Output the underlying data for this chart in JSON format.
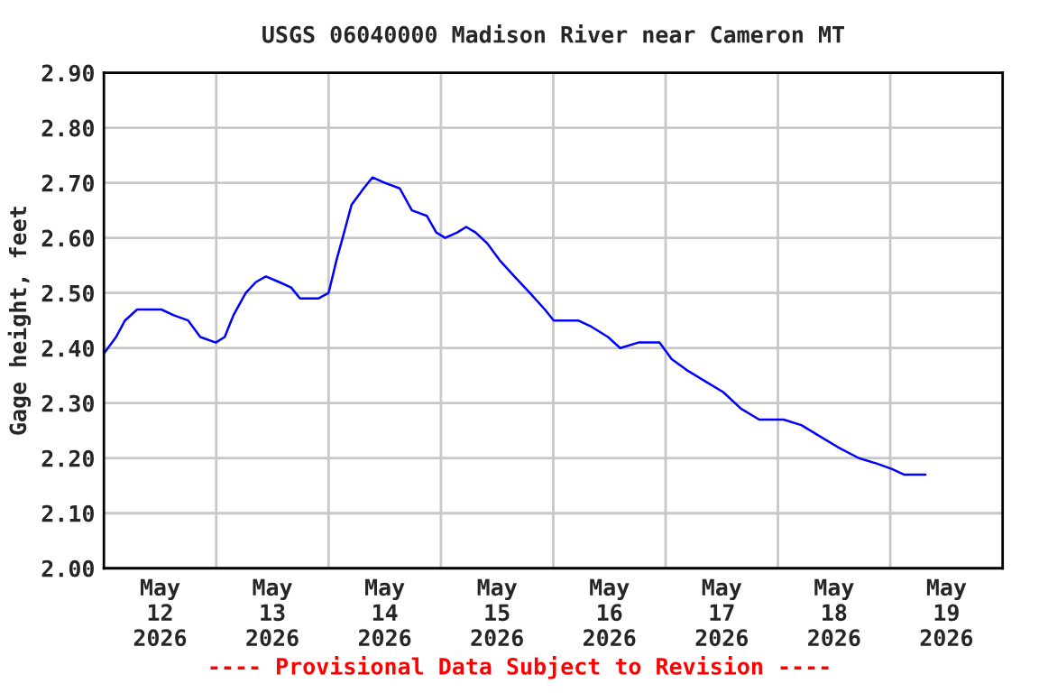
{
  "chart_data": {
    "type": "line",
    "title": "USGS 06040000 Madison River near Cameron MT",
    "ylabel": "Gage height, feet",
    "annotations": [
      "---- Provisional Data Subject to Revision ----"
    ],
    "x": [
      "2026-05-12T00:00",
      "2026-05-12T02:36",
      "2026-05-12T04:30",
      "2026-05-12T07:06",
      "2026-05-12T12:18",
      "2026-05-12T14:48",
      "2026-05-12T18:00",
      "2026-05-12T20:36",
      "2026-05-12T23:54",
      "2026-05-13T01:48",
      "2026-05-13T03:42",
      "2026-05-13T06:18",
      "2026-05-13T08:30",
      "2026-05-13T10:36",
      "2026-05-13T13:24",
      "2026-05-13T16:00",
      "2026-05-13T17:54",
      "2026-05-13T19:54",
      "2026-05-13T21:48",
      "2026-05-14T00:00",
      "2026-05-14T01:42",
      "2026-05-14T03:00",
      "2026-05-14T04:54",
      "2026-05-14T07:30",
      "2026-05-14T09:24",
      "2026-05-14T12:00",
      "2026-05-14T15:12",
      "2026-05-14T17:48",
      "2026-05-14T21:00",
      "2026-05-14T23:00",
      "2026-05-15T00:54",
      "2026-05-15T03:30",
      "2026-05-15T05:24",
      "2026-05-15T07:24",
      "2026-05-15T09:54",
      "2026-05-15T12:30",
      "2026-05-15T15:42",
      "2026-05-15T19:00",
      "2026-05-15T22:12",
      "2026-05-16T00:06",
      "2026-05-16T02:42",
      "2026-05-16T05:18",
      "2026-05-16T07:54",
      "2026-05-16T11:42",
      "2026-05-16T14:18",
      "2026-05-16T18:12",
      "2026-05-16T22:42",
      "2026-05-17T01:18",
      "2026-05-17T04:30",
      "2026-05-17T08:24",
      "2026-05-17T12:18",
      "2026-05-17T16:06",
      "2026-05-17T20:00",
      "2026-05-18T01:12",
      "2026-05-18T05:00",
      "2026-05-18T08:54",
      "2026-05-18T12:48",
      "2026-05-18T17:18",
      "2026-05-18T21:12",
      "2026-05-19T00:24",
      "2026-05-19T03:00",
      "2026-05-19T07:30"
    ],
    "series": [
      {
        "color": "#0000ff",
        "values": [
          2.39,
          2.42,
          2.45,
          2.47,
          2.47,
          2.46,
          2.45,
          2.42,
          2.41,
          2.42,
          2.46,
          2.5,
          2.52,
          2.53,
          2.52,
          2.51,
          2.49,
          2.49,
          2.49,
          2.5,
          2.56,
          2.6,
          2.66,
          2.69,
          2.71,
          2.7,
          2.69,
          2.65,
          2.64,
          2.61,
          2.6,
          2.61,
          2.62,
          2.61,
          2.59,
          2.56,
          2.53,
          2.5,
          2.47,
          2.45,
          2.45,
          2.45,
          2.44,
          2.42,
          2.4,
          2.41,
          2.41,
          2.38,
          2.36,
          2.34,
          2.32,
          2.29,
          2.27,
          2.27,
          2.26,
          2.24,
          2.22,
          2.2,
          2.19,
          2.18,
          2.17,
          2.17
        ]
      }
    ],
    "xlim": [
      "2026-05-12T00:00",
      "2026-05-20T00:00"
    ],
    "xticks": [
      {
        "value": "2026-05-12T12:00",
        "label": "May\n12\n2026"
      },
      {
        "value": "2026-05-13T00:00",
        "label": null
      },
      {
        "value": "2026-05-13T12:00",
        "label": "May\n13\n2026"
      },
      {
        "value": "2026-05-14T00:00",
        "label": null
      },
      {
        "value": "2026-05-14T12:00",
        "label": "May\n14\n2026"
      },
      {
        "value": "2026-05-15T00:00",
        "label": null
      },
      {
        "value": "2026-05-15T12:00",
        "label": "May\n15\n2026"
      },
      {
        "value": "2026-05-16T00:00",
        "label": null
      },
      {
        "value": "2026-05-16T12:00",
        "label": "May\n16\n2026"
      },
      {
        "value": "2026-05-17T00:00",
        "label": null
      },
      {
        "value": "2026-05-17T12:00",
        "label": "May\n17\n2026"
      },
      {
        "value": "2026-05-18T00:00",
        "label": null
      },
      {
        "value": "2026-05-18T12:00",
        "label": "May\n18\n2026"
      },
      {
        "value": "2026-05-19T00:00",
        "label": null
      },
      {
        "value": "2026-05-19T12:00",
        "label": "May\n19\n2026"
      }
    ],
    "ylim": [
      2.0,
      2.9
    ],
    "yticks": [
      {
        "value": 2.0,
        "label": "2.00"
      },
      {
        "value": 2.1,
        "label": "2.10"
      },
      {
        "value": 2.2,
        "label": "2.20"
      },
      {
        "value": 2.3,
        "label": "2.30"
      },
      {
        "value": 2.4,
        "label": "2.40"
      },
      {
        "value": 2.5,
        "label": "2.50"
      },
      {
        "value": 2.6,
        "label": "2.60"
      },
      {
        "value": 2.7,
        "label": "2.70"
      },
      {
        "value": 2.8,
        "label": "2.80"
      },
      {
        "value": 2.9,
        "label": "2.90"
      }
    ],
    "grid": true,
    "marker": "none",
    "line_style": "solid"
  }
}
